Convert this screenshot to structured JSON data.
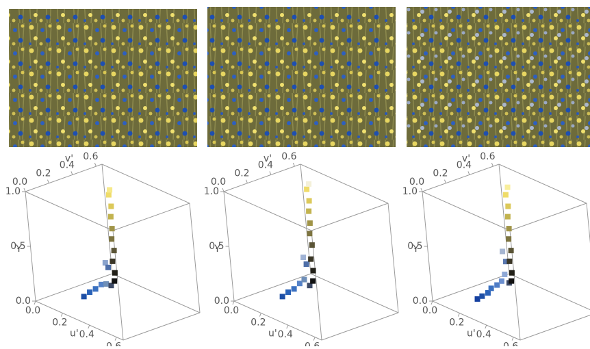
{
  "chart_data": [
    {
      "type": "scatter3d",
      "xlabel": "u'",
      "ylabel": "v'",
      "zlabel": "Y",
      "xlim": [
        0,
        0.65
      ],
      "ylim": [
        0,
        0.65
      ],
      "zlim": [
        0,
        1
      ],
      "xticks": [
        {
          "value": 0,
          "label": "0.0"
        },
        0.2,
        0.4,
        0.6
      ],
      "yticks": [
        {
          "value": 0,
          "label": "0.0"
        },
        0.2,
        0.4,
        0.6
      ],
      "zticks": [
        {
          "value": 0,
          "label": "0.0"
        },
        0.5,
        {
          "value": 1,
          "label": "1.0"
        }
      ],
      "x": [
        0.17,
        0.18,
        0.19,
        0.2,
        0.2,
        0.21,
        0.19,
        0.19,
        0.2,
        0.21,
        0.2,
        0.21,
        0.2,
        0.21,
        0.2,
        0.21,
        0.2,
        0.21
      ],
      "y": [
        0.22,
        0.26,
        0.3,
        0.34,
        0.38,
        0.41,
        0.4,
        0.42,
        0.45,
        0.45,
        0.45,
        0.46,
        0.46,
        0.46,
        0.47,
        0.47,
        0.47,
        0.47
      ],
      "z": [
        0.05,
        0.08,
        0.1,
        0.13,
        0.12,
        0.1,
        0.3,
        0.25,
        0.12,
        0.2,
        0.3,
        0.4,
        0.5,
        0.6,
        0.7,
        0.8,
        0.9,
        0.95
      ],
      "colors": [
        "#1d4fa6",
        "#2a62b8",
        "#3a70c0",
        "#5582c8",
        "#6f8fb8",
        "#3d4a66",
        "#8aa3cc",
        "#4e6fa8",
        "#111111",
        "#222018",
        "#3a3626",
        "#5a5436",
        "#7d7440",
        "#a09447",
        "#c2b34f",
        "#dcc95a",
        "#efdc6a",
        "#f6e98a"
      ]
    },
    {
      "type": "scatter3d",
      "xlabel": "u'",
      "ylabel": "v'",
      "zlabel": "Y",
      "xlim": [
        0,
        0.65
      ],
      "ylim": [
        0,
        0.65
      ],
      "zlim": [
        0,
        1
      ],
      "xticks": [
        {
          "value": 0,
          "label": "0.0"
        },
        0.2,
        0.4,
        0.6
      ],
      "yticks": [
        {
          "value": 0,
          "label": "0.0"
        },
        0.2,
        0.4,
        0.6
      ],
      "zticks": [
        {
          "value": 0,
          "label": "0.0"
        },
        0.5,
        {
          "value": 1,
          "label": "1.0"
        }
      ],
      "x": [
        0.17,
        0.18,
        0.19,
        0.2,
        0.2,
        0.21,
        0.19,
        0.19,
        0.2,
        0.21,
        0.2,
        0.21,
        0.2,
        0.21,
        0.2,
        0.21,
        0.2,
        0.21
      ],
      "y": [
        0.22,
        0.26,
        0.3,
        0.34,
        0.38,
        0.41,
        0.4,
        0.42,
        0.45,
        0.45,
        0.45,
        0.46,
        0.46,
        0.46,
        0.47,
        0.47,
        0.47,
        0.48
      ],
      "z": [
        0.05,
        0.08,
        0.1,
        0.14,
        0.16,
        0.1,
        0.35,
        0.28,
        0.12,
        0.22,
        0.32,
        0.45,
        0.55,
        0.65,
        0.75,
        0.85,
        0.95,
        1.0
      ],
      "colors": [
        "#1d4fa6",
        "#2a62b8",
        "#3a70c0",
        "#5582c8",
        "#6f8fb8",
        "#3d4a66",
        "#9fb2d4",
        "#4e6fa8",
        "#111111",
        "#222018",
        "#3a3626",
        "#5a5436",
        "#7d7440",
        "#a09447",
        "#c2b34f",
        "#dcc95a",
        "#efdc6a",
        "#f4f0d8"
      ]
    },
    {
      "type": "scatter3d",
      "xlabel": "u'",
      "ylabel": "v'",
      "zlabel": "Y",
      "xlim": [
        0,
        0.65
      ],
      "ylim": [
        0,
        0.65
      ],
      "zlim": [
        0,
        1
      ],
      "xticks": [
        {
          "value": 0,
          "label": "0.0"
        },
        0.2,
        0.4,
        0.6
      ],
      "yticks": [
        {
          "value": 0,
          "label": "0.0"
        },
        0.2,
        0.4,
        0.6
      ],
      "zticks": [
        {
          "value": 0,
          "label": "0.0"
        },
        0.5,
        {
          "value": 1,
          "label": "1.0"
        }
      ],
      "x": [
        0.16,
        0.17,
        0.18,
        0.18,
        0.19,
        0.2,
        0.2,
        0.21,
        0.19,
        0.19,
        0.2,
        0.21,
        0.2,
        0.21,
        0.2,
        0.21,
        0.2,
        0.21,
        0.2,
        0.21
      ],
      "y": [
        0.2,
        0.23,
        0.27,
        0.3,
        0.34,
        0.37,
        0.4,
        0.42,
        0.41,
        0.43,
        0.45,
        0.45,
        0.45,
        0.46,
        0.46,
        0.46,
        0.47,
        0.47,
        0.47,
        0.48
      ],
      "z": [
        0.03,
        0.05,
        0.07,
        0.1,
        0.12,
        0.15,
        0.2,
        0.12,
        0.4,
        0.3,
        0.12,
        0.2,
        0.3,
        0.4,
        0.5,
        0.6,
        0.7,
        0.8,
        0.9,
        0.97
      ],
      "colors": [
        "#1540a0",
        "#1d4fa6",
        "#2a62b8",
        "#3a70c0",
        "#4f7dc6",
        "#6b8fcf",
        "#8ea8d6",
        "#3d4a66",
        "#a6b6d2",
        "#5a78b0",
        "#111111",
        "#222018",
        "#3a3626",
        "#5a5436",
        "#7d7440",
        "#a09447",
        "#c2b34f",
        "#dcc95a",
        "#efdc6a",
        "#f8ee9c"
      ]
    }
  ]
}
